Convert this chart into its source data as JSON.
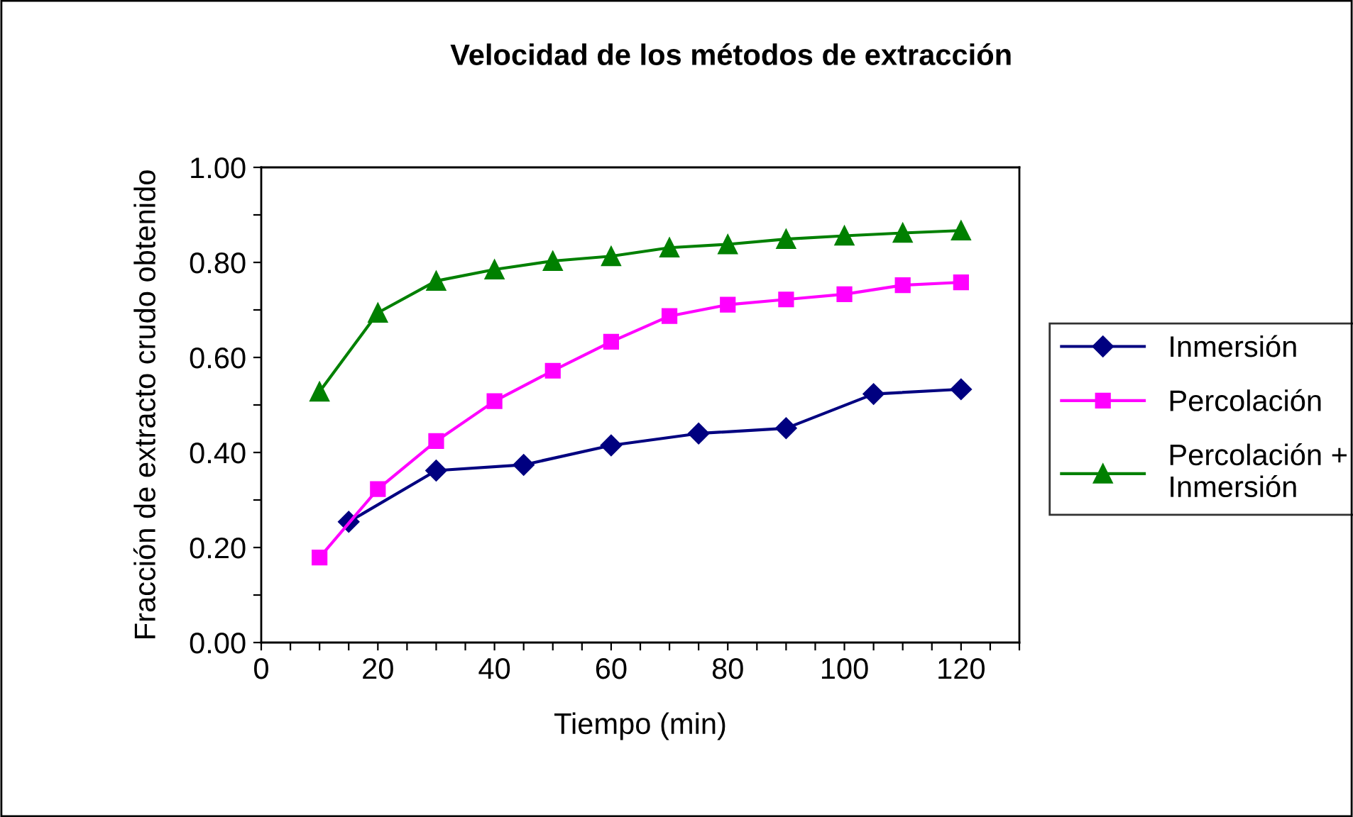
{
  "chart_data": {
    "type": "line",
    "title": "Velocidad de los métodos de extracción",
    "xlabel": "Tiempo (min)",
    "ylabel": "Fracción de extracto crudo obtenido",
    "series": [
      {
        "name": "Inmersión",
        "color": "#000080",
        "marker": "diamond",
        "x": [
          15,
          30,
          45,
          60,
          75,
          90,
          105,
          120
        ],
        "values": [
          0.254,
          0.362,
          0.374,
          0.415,
          0.44,
          0.451,
          0.523,
          0.533
        ]
      },
      {
        "name": "Percolación",
        "color": "#ff00ff",
        "marker": "square",
        "x": [
          10,
          20,
          30,
          40,
          50,
          60,
          70,
          80,
          90,
          100,
          110,
          120
        ],
        "values": [
          0.179,
          0.323,
          0.424,
          0.508,
          0.572,
          0.633,
          0.687,
          0.711,
          0.722,
          0.733,
          0.752,
          0.758
        ]
      },
      {
        "name": "Percolación + Inmersión",
        "color": "#008000",
        "marker": "triangle",
        "x": [
          10,
          20,
          30,
          40,
          50,
          60,
          70,
          80,
          90,
          100,
          110,
          120
        ],
        "values": [
          0.528,
          0.694,
          0.761,
          0.785,
          0.803,
          0.813,
          0.831,
          0.838,
          0.849,
          0.856,
          0.862,
          0.867
        ]
      }
    ],
    "xlim": [
      0,
      130
    ],
    "xticks": [
      0,
      {
        "value": 5,
        "label": null
      },
      {
        "value": 10,
        "label": null
      },
      {
        "value": 15,
        "label": null
      },
      20,
      {
        "value": 25,
        "label": null
      },
      {
        "value": 30,
        "label": null
      },
      {
        "value": 35,
        "label": null
      },
      40,
      {
        "value": 45,
        "label": null
      },
      {
        "value": 50,
        "label": null
      },
      {
        "value": 55,
        "label": null
      },
      60,
      {
        "value": 65,
        "label": null
      },
      {
        "value": 70,
        "label": null
      },
      {
        "value": 75,
        "label": null
      },
      80,
      {
        "value": 85,
        "label": null
      },
      {
        "value": 90,
        "label": null
      },
      {
        "value": 95,
        "label": null
      },
      100,
      {
        "value": 105,
        "label": null
      },
      {
        "value": 110,
        "label": null
      },
      {
        "value": 115,
        "label": null
      },
      120,
      {
        "value": 125,
        "label": null
      },
      {
        "value": 130,
        "label": null
      }
    ],
    "ylim": [
      0,
      1
    ],
    "yticks": [
      {
        "value": 0,
        "label": "0.00"
      },
      {
        "value": 0.1,
        "label": null
      },
      {
        "value": 0.2,
        "label": "0.20"
      },
      {
        "value": 0.3,
        "label": null
      },
      {
        "value": 0.4,
        "label": "0.40"
      },
      {
        "value": 0.5,
        "label": null
      },
      {
        "value": 0.6,
        "label": "0.60"
      },
      {
        "value": 0.7,
        "label": null
      },
      {
        "value": 0.8,
        "label": "0.80"
      },
      {
        "value": 0.9,
        "label": null
      },
      {
        "value": 1.0,
        "label": "1.00"
      }
    ],
    "grid": false,
    "legend": "right",
    "line_style": "solid"
  }
}
